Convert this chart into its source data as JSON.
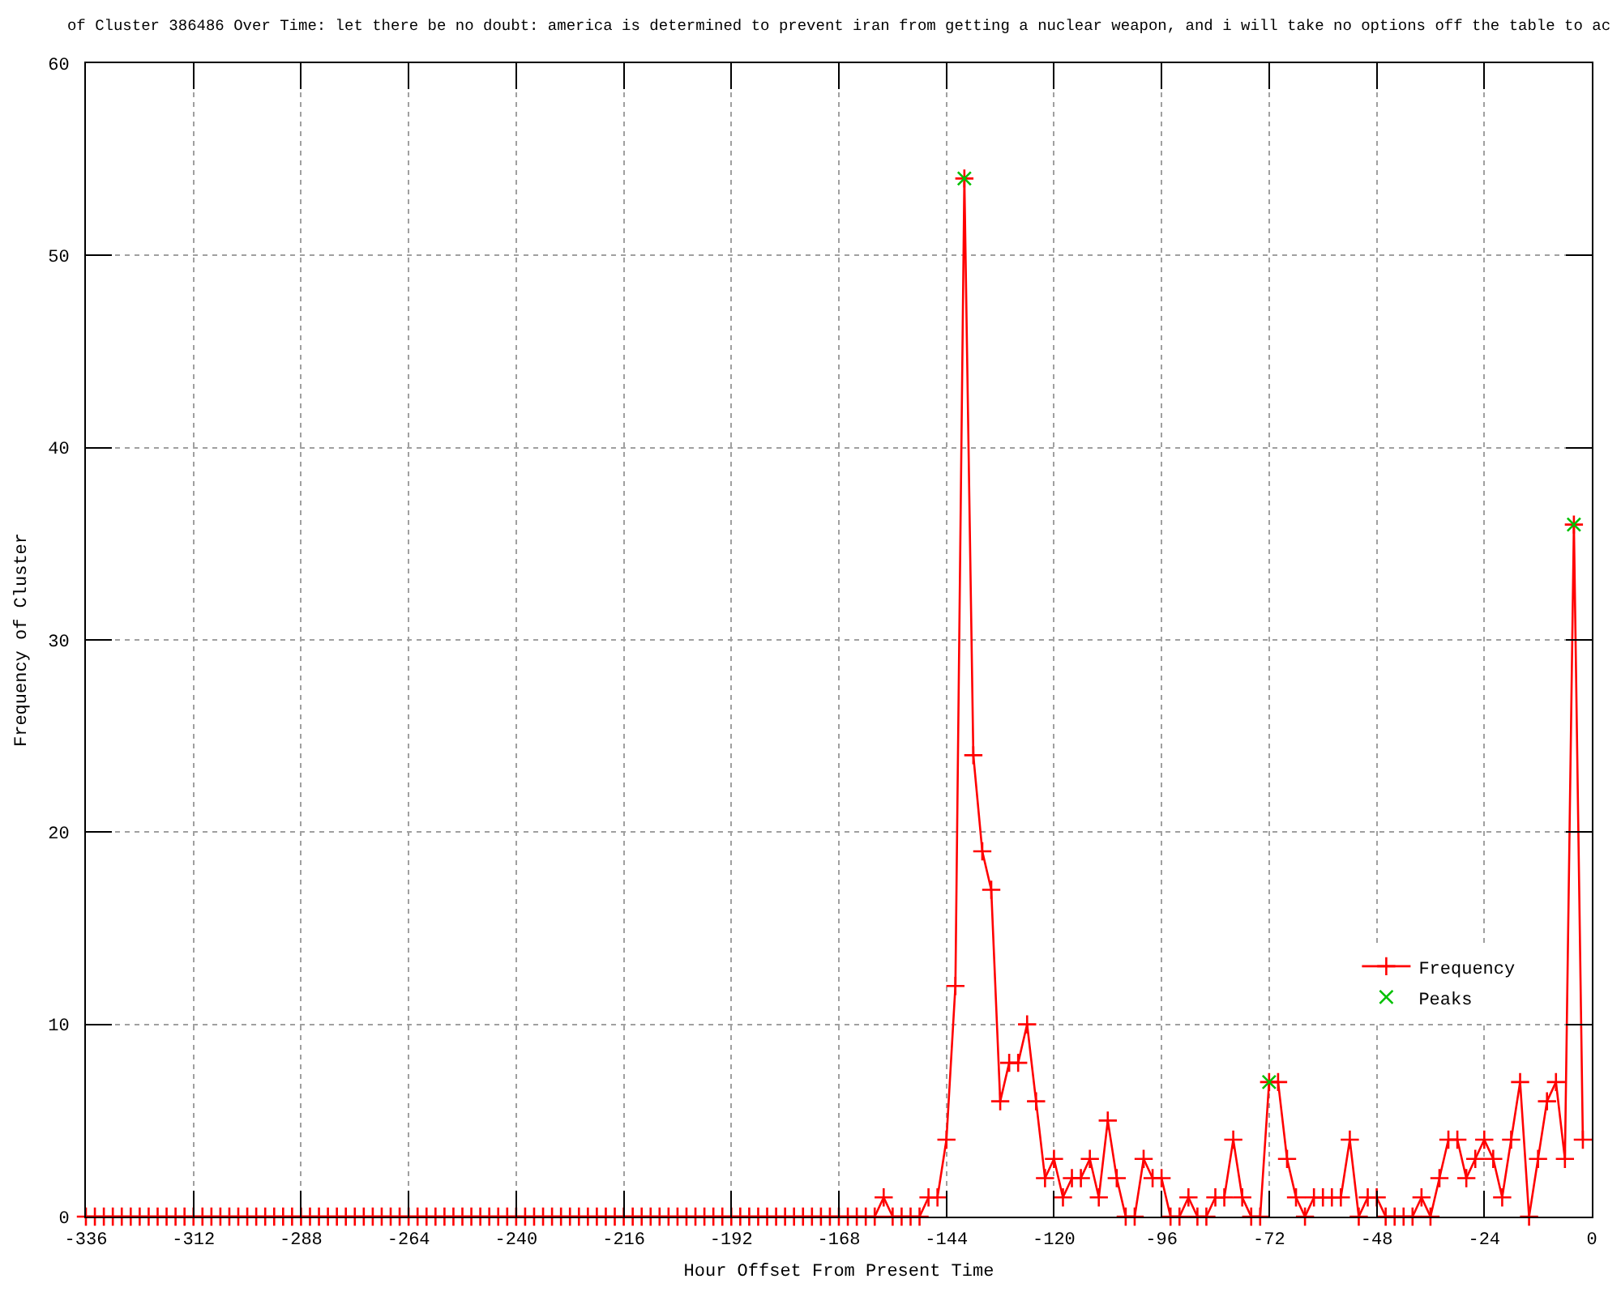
{
  "chart_data": {
    "type": "line",
    "title": "of Cluster 386486 Over Time: let there be no doubt: america is determined to prevent iran from getting a nuclear weapon, and i will take no options off the table to ac",
    "xlabel": "Hour Offset From Present Time",
    "ylabel": "Frequency of Cluster",
    "xlim": [
      -336,
      0
    ],
    "xticks": [
      -336,
      -312,
      -288,
      -264,
      -240,
      -216,
      -192,
      -168,
      -144,
      -120,
      -96,
      -72,
      -48,
      -24,
      0
    ],
    "ylim": [
      0,
      60
    ],
    "yticks": [
      0,
      10,
      20,
      30,
      40,
      50,
      60
    ],
    "grid": true,
    "legend": "bottom right",
    "x": [
      -336,
      -334,
      -332,
      -330,
      -328,
      -326,
      -324,
      -322,
      -320,
      -318,
      -316,
      -314,
      -312,
      -310,
      -308,
      -306,
      -304,
      -302,
      -300,
      -298,
      -296,
      -294,
      -292,
      -290,
      -288,
      -286,
      -284,
      -282,
      -280,
      -278,
      -276,
      -274,
      -272,
      -270,
      -268,
      -266,
      -264,
      -262,
      -260,
      -258,
      -256,
      -254,
      -252,
      -250,
      -248,
      -246,
      -244,
      -242,
      -240,
      -238,
      -236,
      -234,
      -232,
      -230,
      -228,
      -226,
      -224,
      -222,
      -220,
      -218,
      -216,
      -214,
      -212,
      -210,
      -208,
      -206,
      -204,
      -202,
      -200,
      -198,
      -196,
      -194,
      -192,
      -190,
      -188,
      -186,
      -184,
      -182,
      -180,
      -178,
      -176,
      -174,
      -172,
      -170,
      -168,
      -166,
      -164,
      -162,
      -160,
      -158,
      -156,
      -154,
      -152,
      -150,
      -148,
      -146,
      -144,
      -142,
      -140,
      -138,
      -136,
      -134,
      -132,
      -130,
      -128,
      -126,
      -124,
      -122,
      -120,
      -118,
      -116,
      -114,
      -112,
      -110,
      -108,
      -106,
      -104,
      -102,
      -100,
      -98,
      -96,
      -94,
      -92,
      -90,
      -88,
      -86,
      -84,
      -82,
      -80,
      -78,
      -76,
      -74,
      -72,
      -70,
      -68,
      -66,
      -64,
      -62,
      -60,
      -58,
      -56,
      -54,
      -52,
      -50,
      -48,
      -46,
      -44,
      -42,
      -40,
      -38,
      -36,
      -34,
      -32,
      -30,
      -28,
      -26,
      -24,
      -22,
      -20,
      -18,
      -16,
      -14,
      -12,
      -10,
      -8,
      -6,
      -4,
      -2
    ],
    "series": [
      {
        "name": "Frequency",
        "color": "#ff0000",
        "marker": "cross",
        "values": [
          0,
          0,
          0,
          0,
          0,
          0,
          0,
          0,
          0,
          0,
          0,
          0,
          0,
          0,
          0,
          0,
          0,
          0,
          0,
          0,
          0,
          0,
          0,
          0,
          0,
          0,
          0,
          0,
          0,
          0,
          0,
          0,
          0,
          0,
          0,
          0,
          0,
          0,
          0,
          0,
          0,
          0,
          0,
          0,
          0,
          0,
          0,
          0,
          0,
          0,
          0,
          0,
          0,
          0,
          0,
          0,
          0,
          0,
          0,
          0,
          0,
          0,
          0,
          0,
          0,
          0,
          0,
          0,
          0,
          0,
          0,
          0,
          0,
          0,
          0,
          0,
          0,
          0,
          0,
          0,
          0,
          0,
          0,
          0,
          0,
          0,
          0,
          0,
          0,
          1,
          0,
          0,
          0,
          0,
          1,
          1,
          4,
          12,
          54,
          24,
          19,
          17,
          6,
          8,
          8,
          10,
          6,
          2,
          3,
          1,
          2,
          2,
          3,
          1,
          5,
          2,
          0,
          0,
          3,
          2,
          2,
          0,
          0,
          1,
          0,
          0,
          1,
          1,
          4,
          1,
          0,
          0,
          7,
          7,
          3,
          1,
          0,
          1,
          1,
          1,
          1,
          4,
          0,
          1,
          1,
          0,
          0,
          0,
          0,
          1,
          0,
          2,
          4,
          4,
          2,
          3,
          4,
          3,
          1,
          4,
          7,
          0,
          3,
          6,
          7,
          3,
          36,
          4
        ]
      },
      {
        "name": "Peaks",
        "type": "scatter",
        "color": "#00c000",
        "marker": "x",
        "x": [
          -140,
          -72,
          -4
        ],
        "values": [
          54,
          7,
          36
        ]
      }
    ]
  }
}
